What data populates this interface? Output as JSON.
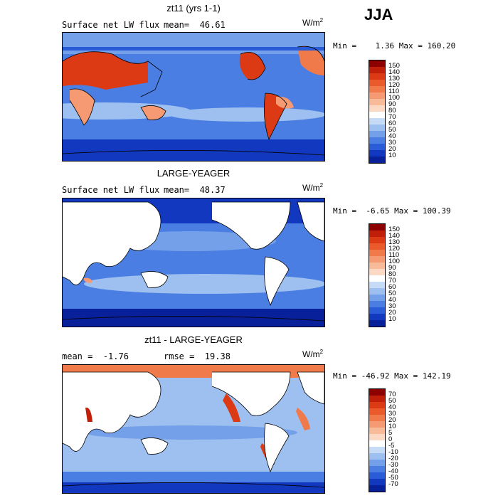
{
  "season": "JJA",
  "panels": [
    {
      "title": "zt11 (yrs 1-1)",
      "left_label": "Surface net LW flux",
      "right_label": "mean=  46.61",
      "units": "W/m",
      "units_exp": "2",
      "minmax": "Min =    1.36 Max = 160.20",
      "colorbar": {
        "labels": [
          "150",
          "140",
          "130",
          "120",
          "110",
          "100",
          "90",
          "80",
          "70",
          "60",
          "50",
          "40",
          "30",
          "20",
          "10"
        ],
        "colors": [
          "#8c0000",
          "#c0200a",
          "#dc3a14",
          "#ea5a2a",
          "#f07a4a",
          "#f59a72",
          "#f8bb9a",
          "#fbd9c4",
          "#ffffff",
          "#c6dcf6",
          "#9dc0f0",
          "#74a0ea",
          "#4a7ee2",
          "#2a5cd8",
          "#1238c0",
          "#08209a"
        ]
      }
    },
    {
      "title": "LARGE-YEAGER",
      "left_label": "Surface net LW flux",
      "right_label": "mean=  48.37",
      "units": "W/m",
      "units_exp": "2",
      "minmax": "Min =  -6.65 Max = 100.39",
      "colorbar": {
        "labels": [
          "150",
          "140",
          "130",
          "120",
          "110",
          "100",
          "90",
          "80",
          "70",
          "60",
          "50",
          "40",
          "30",
          "20",
          "10"
        ],
        "colors": [
          "#8c0000",
          "#c0200a",
          "#dc3a14",
          "#ea5a2a",
          "#f07a4a",
          "#f59a72",
          "#f8bb9a",
          "#fbd9c4",
          "#ffffff",
          "#c6dcf6",
          "#9dc0f0",
          "#74a0ea",
          "#4a7ee2",
          "#2a5cd8",
          "#1238c0",
          "#08209a"
        ]
      }
    },
    {
      "title": "zt11 - LARGE-YEAGER",
      "left_label": "mean =  -1.76",
      "right_label": "rmse =  19.38",
      "units": "W/m",
      "units_exp": "2",
      "minmax": "Min = -46.92 Max = 142.19",
      "colorbar": {
        "labels": [
          "70",
          "50",
          "40",
          "30",
          "20",
          "10",
          "5",
          "0",
          "-5",
          "-10",
          "-20",
          "-30",
          "-40",
          "-50",
          "-70"
        ],
        "colors": [
          "#8c0000",
          "#c0200a",
          "#dc3a14",
          "#ea5a2a",
          "#f07a4a",
          "#f59a72",
          "#f8bb9a",
          "#fbd9c4",
          "#ffffff",
          "#c6dcf6",
          "#9dc0f0",
          "#74a0ea",
          "#4a7ee2",
          "#2a5cd8",
          "#1238c0",
          "#08209a"
        ]
      }
    }
  ],
  "map_colors": {
    "ocean_mid": "#4a7ee2",
    "ocean_light": "#9dc0f0",
    "ocean_dark": "#1238c0",
    "hot": "#dc3a14",
    "warm": "#f59a72",
    "land": "#ffffff"
  }
}
